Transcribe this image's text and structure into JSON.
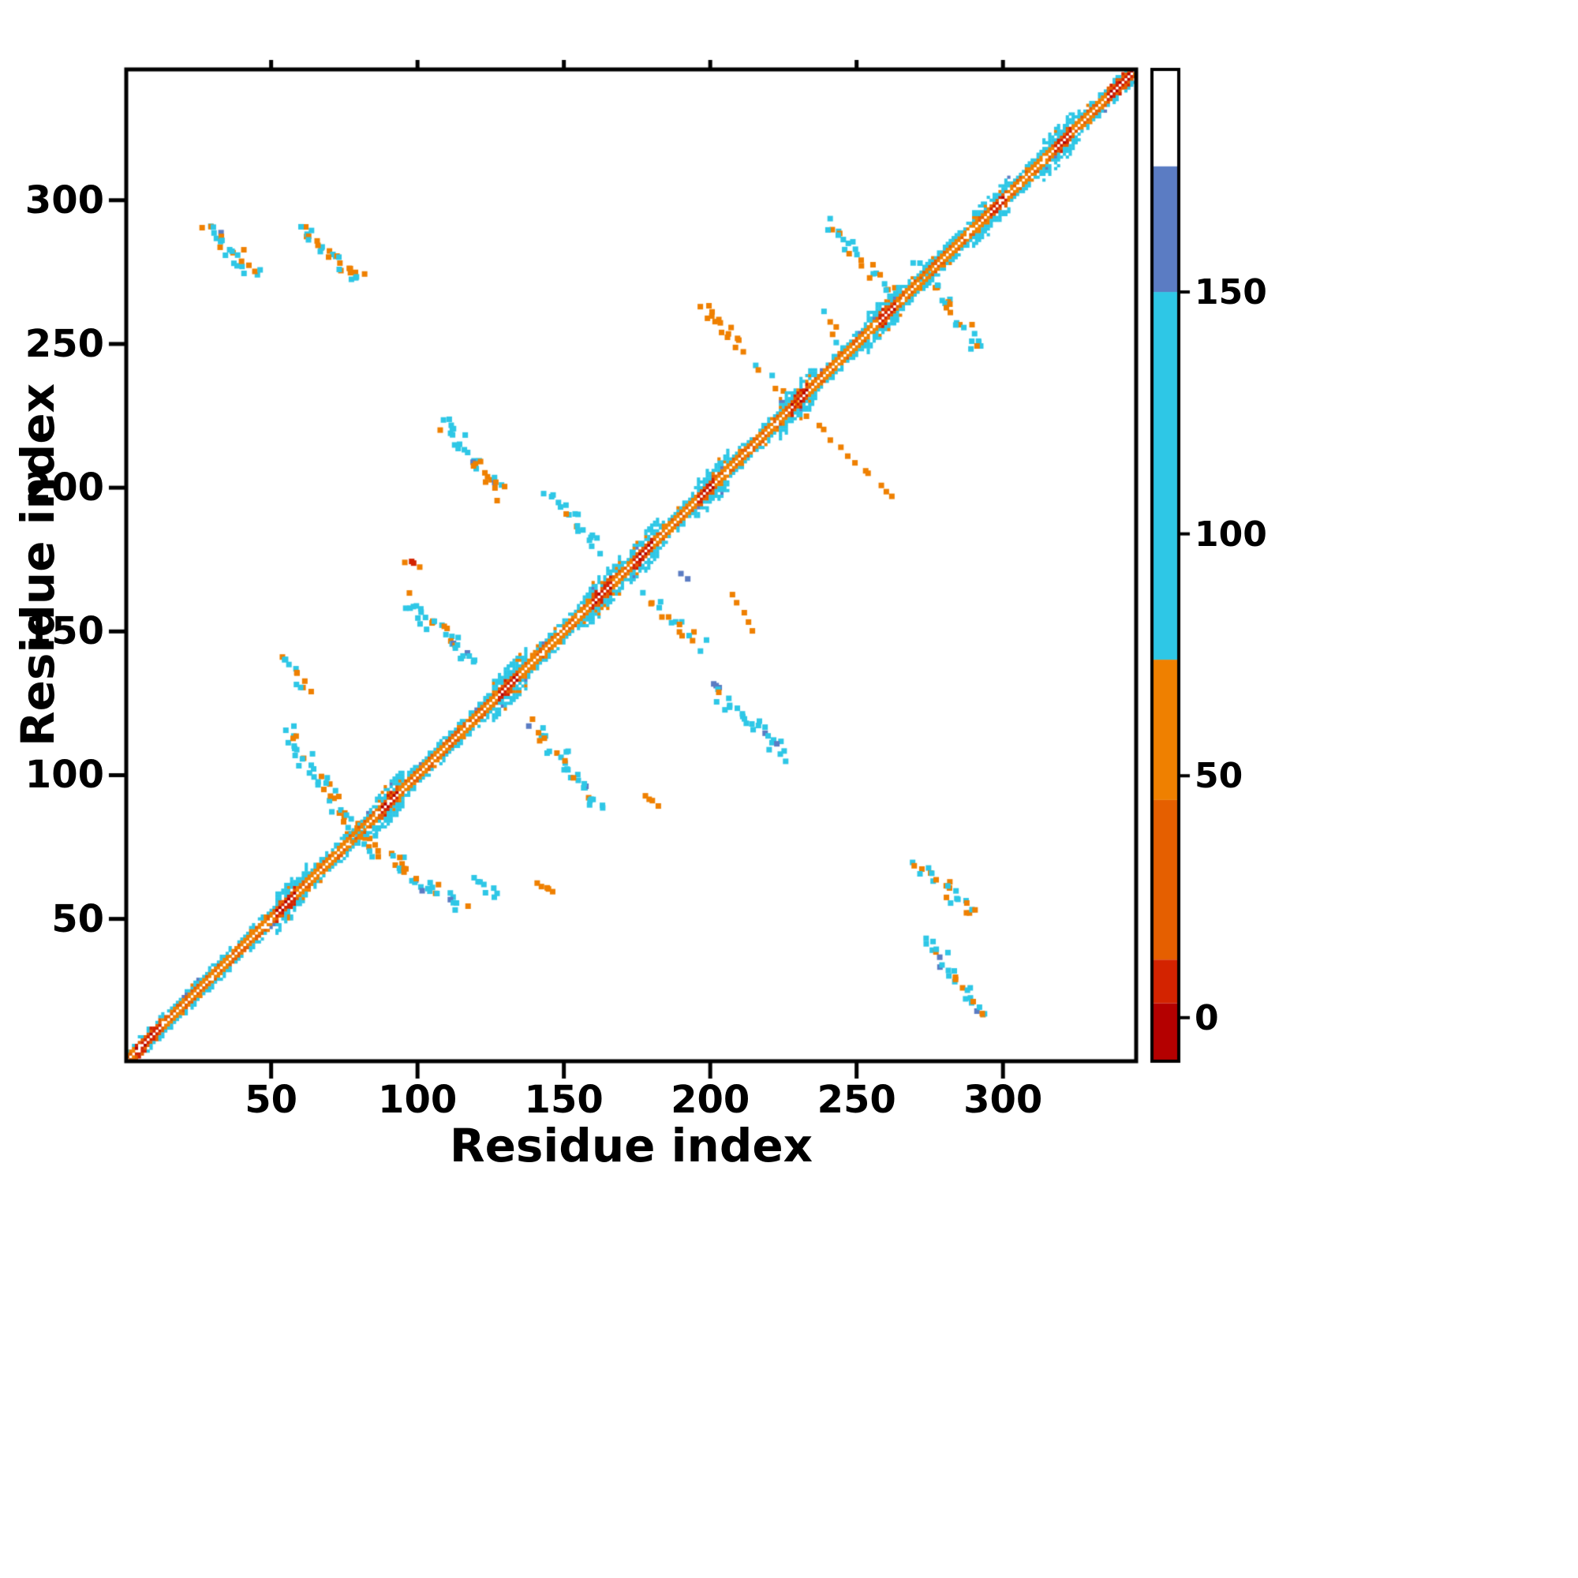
{
  "chart_data": {
    "type": "heatmap",
    "title": "",
    "xlabel": "Residue index",
    "ylabel": "Residue index",
    "xlim": [
      1,
      345
    ],
    "ylim": [
      1,
      345
    ],
    "grid": false,
    "xticks": [
      50,
      100,
      150,
      200,
      250,
      300
    ],
    "yticks": [
      50,
      100,
      150,
      200,
      250,
      300
    ],
    "colorbar": {
      "position": "right",
      "ticks": [
        0,
        50,
        100,
        150
      ],
      "vmin": -9,
      "vmax": 196,
      "bands": [
        [
          -9,
          3,
          "#b40000"
        ],
        [
          3,
          12,
          "#d32300"
        ],
        [
          12,
          45,
          "#e55f00"
        ],
        [
          45,
          74,
          "#ef8000"
        ],
        [
          74,
          150,
          "#2ec7e6"
        ],
        [
          150,
          176,
          "#5b7cc3"
        ],
        [
          176,
          196,
          "#ffffff"
        ]
      ]
    },
    "diagonal": {
      "range": [
        1,
        345
      ],
      "inner_value": 52,
      "outer_value": 98,
      "red_value": 6,
      "red_patches": [
        [
          4,
          12
        ],
        [
          52,
          58
        ],
        [
          88,
          93
        ],
        [
          128,
          134
        ],
        [
          160,
          166
        ],
        [
          174,
          180
        ],
        [
          196,
          201
        ],
        [
          228,
          233
        ],
        [
          258,
          263
        ],
        [
          296,
          301
        ],
        [
          318,
          323
        ],
        [
          336,
          344
        ]
      ],
      "bulges": [
        [
          52,
          62
        ],
        [
          86,
          95
        ],
        [
          126,
          137
        ],
        [
          157,
          170
        ],
        [
          173,
          182
        ],
        [
          194,
          206
        ],
        [
          224,
          236
        ],
        [
          254,
          265
        ],
        [
          290,
          302
        ],
        [
          314,
          326
        ]
      ],
      "seed": 1337
    },
    "clusters": [
      {
        "x1": 28,
        "y1": 292,
        "x2": 45,
        "y2": 274,
        "n": 26,
        "spread": 2.5,
        "mix": [
          [
            98,
            0.5
          ],
          [
            55,
            0.35
          ],
          [
            160,
            0.15
          ]
        ]
      },
      {
        "x1": 60,
        "y1": 290,
        "x2": 81,
        "y2": 272,
        "n": 30,
        "spread": 2.5,
        "mix": [
          [
            55,
            0.55
          ],
          [
            98,
            0.45
          ]
        ]
      },
      {
        "x1": 240,
        "y1": 293,
        "x2": 262,
        "y2": 266,
        "n": 26,
        "spread": 2.5,
        "mix": [
          [
            98,
            0.6
          ],
          [
            55,
            0.4
          ]
        ]
      },
      {
        "x1": 271,
        "y1": 279,
        "x2": 293,
        "y2": 247,
        "n": 30,
        "spread": 2.5,
        "mix": [
          [
            98,
            0.65
          ],
          [
            55,
            0.35
          ]
        ]
      },
      {
        "x1": 108,
        "y1": 224,
        "x2": 129,
        "y2": 197,
        "n": 32,
        "spread": 2.5,
        "mix": [
          [
            98,
            0.6
          ],
          [
            55,
            0.3
          ],
          [
            160,
            0.1
          ]
        ]
      },
      {
        "x1": 145,
        "y1": 199,
        "x2": 162,
        "y2": 178,
        "n": 20,
        "spread": 2.0,
        "mix": [
          [
            98,
            0.7
          ],
          [
            55,
            0.3
          ]
        ]
      },
      {
        "x1": 199,
        "y1": 262,
        "x2": 210,
        "y2": 251,
        "n": 9,
        "spread": 1.5,
        "mix": [
          [
            55,
            1.0
          ]
        ]
      },
      {
        "x1": 196,
        "y1": 262,
        "x2": 263,
        "y2": 196,
        "n": 26,
        "spread": 1.2,
        "mix": [
          [
            55,
            0.9
          ],
          [
            98,
            0.1
          ]
        ]
      },
      {
        "x1": 96,
        "y1": 174,
        "x2": 100,
        "y2": 173,
        "n": 4,
        "spread": 0.8,
        "mix": [
          [
            8,
            0.5
          ],
          [
            55,
            0.5
          ]
        ]
      },
      {
        "x1": 97,
        "y1": 161,
        "x2": 119,
        "y2": 139,
        "n": 34,
        "spread": 2.5,
        "mix": [
          [
            98,
            0.75
          ],
          [
            160,
            0.1
          ],
          [
            55,
            0.15
          ]
        ]
      },
      {
        "x1": 55,
        "y1": 141,
        "x2": 62,
        "y2": 128,
        "n": 12,
        "spread": 1.8,
        "mix": [
          [
            98,
            0.5
          ],
          [
            55,
            0.5
          ]
        ]
      },
      {
        "x1": 55,
        "y1": 115,
        "x2": 81,
        "y2": 77,
        "n": 46,
        "spread": 2.8,
        "mix": [
          [
            98,
            0.55
          ],
          [
            55,
            0.4
          ],
          [
            160,
            0.05
          ]
        ]
      },
      {
        "x1": 77,
        "y1": 81,
        "x2": 115,
        "y2": 55,
        "n": 46,
        "spread": 2.8,
        "mix": [
          [
            98,
            0.55
          ],
          [
            55,
            0.4
          ],
          [
            160,
            0.05
          ]
        ]
      },
      {
        "x1": 140,
        "y1": 118,
        "x2": 163,
        "y2": 88,
        "n": 34,
        "spread": 2.5,
        "mix": [
          [
            98,
            0.7
          ],
          [
            55,
            0.25
          ],
          [
            160,
            0.05
          ]
        ]
      },
      {
        "x1": 178,
        "y1": 93,
        "x2": 182,
        "y2": 89,
        "n": 4,
        "spread": 1.0,
        "mix": [
          [
            55,
            1.0
          ]
        ]
      },
      {
        "x1": 200,
        "y1": 131,
        "x2": 226,
        "y2": 106,
        "n": 30,
        "spread": 2.5,
        "mix": [
          [
            98,
            0.7
          ],
          [
            55,
            0.2
          ],
          [
            160,
            0.1
          ]
        ]
      },
      {
        "x1": 178,
        "y1": 162,
        "x2": 198,
        "y2": 145,
        "n": 18,
        "spread": 2.0,
        "mix": [
          [
            98,
            0.55
          ],
          [
            55,
            0.45
          ]
        ]
      },
      {
        "x1": 271,
        "y1": 70,
        "x2": 291,
        "y2": 51,
        "n": 24,
        "spread": 2.2,
        "mix": [
          [
            55,
            0.5
          ],
          [
            98,
            0.5
          ]
        ]
      },
      {
        "x1": 274,
        "y1": 44,
        "x2": 295,
        "y2": 15,
        "n": 28,
        "spread": 2.2,
        "mix": [
          [
            98,
            0.5
          ],
          [
            160,
            0.15
          ],
          [
            55,
            0.35
          ]
        ]
      },
      {
        "x1": 120,
        "y1": 64,
        "x2": 128,
        "y2": 58,
        "n": 8,
        "spread": 1.5,
        "mix": [
          [
            98,
            1.0
          ]
        ]
      },
      {
        "x1": 141,
        "y1": 63,
        "x2": 146,
        "y2": 60,
        "n": 5,
        "spread": 1.0,
        "mix": [
          [
            55,
            1.0
          ]
        ]
      },
      {
        "x1": 208,
        "y1": 162,
        "x2": 215,
        "y2": 150,
        "n": 5,
        "spread": 1.0,
        "mix": [
          [
            55,
            1.0
          ]
        ]
      },
      {
        "x1": 190,
        "y1": 170,
        "x2": 192,
        "y2": 168,
        "n": 2,
        "spread": 0.5,
        "mix": [
          [
            160,
            1.0
          ]
        ]
      },
      {
        "x1": 240,
        "y1": 261,
        "x2": 245,
        "y2": 249,
        "n": 6,
        "spread": 1.2,
        "mix": [
          [
            55,
            0.7
          ],
          [
            98,
            0.3
          ]
        ]
      }
    ]
  }
}
